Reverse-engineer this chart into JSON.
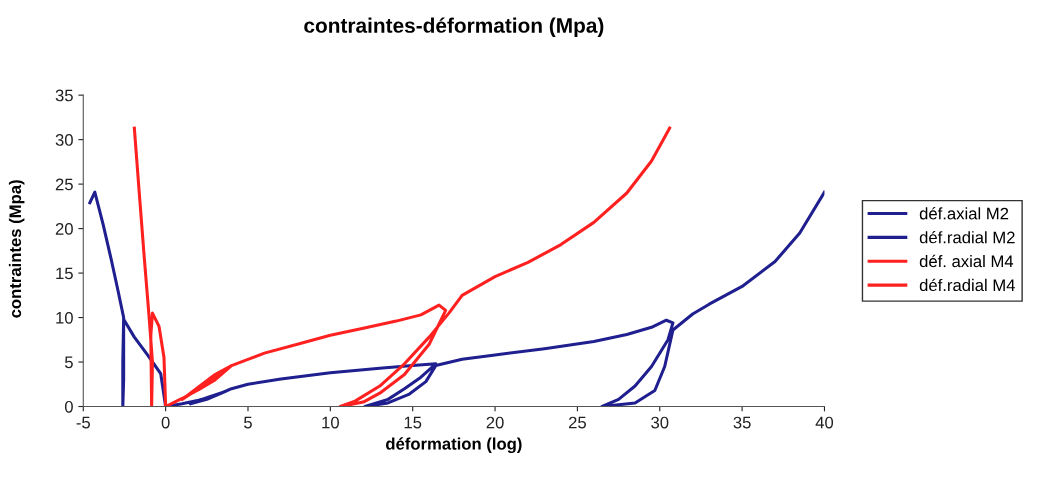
{
  "chart_data": {
    "type": "line",
    "title": "contraintes-déformation (Mpa)",
    "xlabel": "déformation (log)",
    "ylabel": "contraintes (Mpa)",
    "xlim": [
      -5,
      40
    ],
    "ylim": [
      0,
      35
    ],
    "xticks": [
      -5,
      0,
      5,
      10,
      15,
      20,
      25,
      30,
      35,
      40
    ],
    "yticks": [
      0,
      5,
      10,
      15,
      20,
      25,
      30,
      35
    ],
    "grid": false,
    "legend": "right",
    "marker": "none",
    "line_style": "solid",
    "series": [
      {
        "name": "déf.axial M2",
        "color": "#1f1f8f",
        "x": [
          0,
          1,
          2,
          3,
          3.5,
          2.5,
          1.5,
          2.5,
          3.5,
          4,
          5,
          7,
          10,
          13,
          15,
          16.4,
          15.5,
          14.5,
          13.5,
          12.1,
          13.5,
          14.8,
          15.8,
          16.4,
          18,
          20,
          23,
          26,
          28,
          29.5,
          30.4,
          30.8,
          30.5,
          29.5,
          28.5,
          27.5,
          26.5,
          28.5,
          29.7,
          30.3,
          30.8,
          32,
          33,
          35,
          37,
          38.5,
          40
        ],
        "values": [
          0,
          0.3,
          0.7,
          1.2,
          1.6,
          0.8,
          0.3,
          1,
          1.6,
          2,
          2.5,
          3.1,
          3.8,
          4.3,
          4.6,
          4.8,
          3.3,
          2,
          0.8,
          0,
          0.4,
          1.4,
          2.8,
          4.6,
          5.3,
          5.8,
          6.5,
          7.3,
          8.1,
          8.9,
          9.7,
          9.4,
          7.5,
          4.5,
          2.3,
          0.8,
          0,
          0.4,
          1.8,
          4.5,
          8.6,
          10.4,
          11.5,
          13.5,
          16.3,
          19.5,
          24.1
        ]
      },
      {
        "name": "déf.radial M2",
        "color": "#1f1f8f",
        "x": [
          0,
          -0.3,
          -1.1,
          -1.9,
          -2.55,
          -2.6,
          -2.6,
          -2.55,
          -2.55,
          -2.9,
          -3.3,
          -3.8,
          -4.3,
          -4.6
        ],
        "values": [
          0,
          3.7,
          5.8,
          7.8,
          9.8,
          5,
          0,
          3,
          10,
          13.1,
          16.5,
          20.5,
          24.1,
          22.9
        ]
      },
      {
        "name": "déf. axial M4",
        "color": "#ff2020",
        "x": [
          0,
          1,
          2,
          3,
          4,
          3,
          2,
          1,
          2,
          3,
          4,
          5,
          6,
          8,
          10,
          12,
          14,
          15.5,
          16.6,
          17,
          16,
          14.5,
          13,
          12,
          10.6,
          11.5,
          13,
          14.5,
          16,
          17.2,
          18,
          20,
          22,
          24,
          26,
          28,
          29.5,
          30.6
        ],
        "values": [
          0,
          0.9,
          1.9,
          3,
          4.6,
          3.6,
          2.2,
          0.8,
          2,
          3.4,
          4.6,
          5.3,
          6,
          7,
          8,
          8.8,
          9.6,
          10.3,
          11.4,
          10.8,
          7,
          3.6,
          1.5,
          0.5,
          0,
          0.6,
          2.3,
          4.8,
          7.8,
          10.5,
          12.5,
          14.6,
          16.2,
          18.2,
          20.7,
          24,
          27.6,
          31.3
        ]
      },
      {
        "name": "déf.radial M4",
        "color": "#ff2020",
        "x": [
          0,
          -0.1,
          -0.4,
          -0.8,
          -0.9,
          -0.85,
          -0.8,
          -1.0,
          -1.3,
          -1.6,
          -1.9
        ],
        "values": [
          0,
          5.5,
          9,
          10.5,
          8,
          0,
          5,
          10,
          16.8,
          24,
          31.3
        ]
      }
    ]
  }
}
